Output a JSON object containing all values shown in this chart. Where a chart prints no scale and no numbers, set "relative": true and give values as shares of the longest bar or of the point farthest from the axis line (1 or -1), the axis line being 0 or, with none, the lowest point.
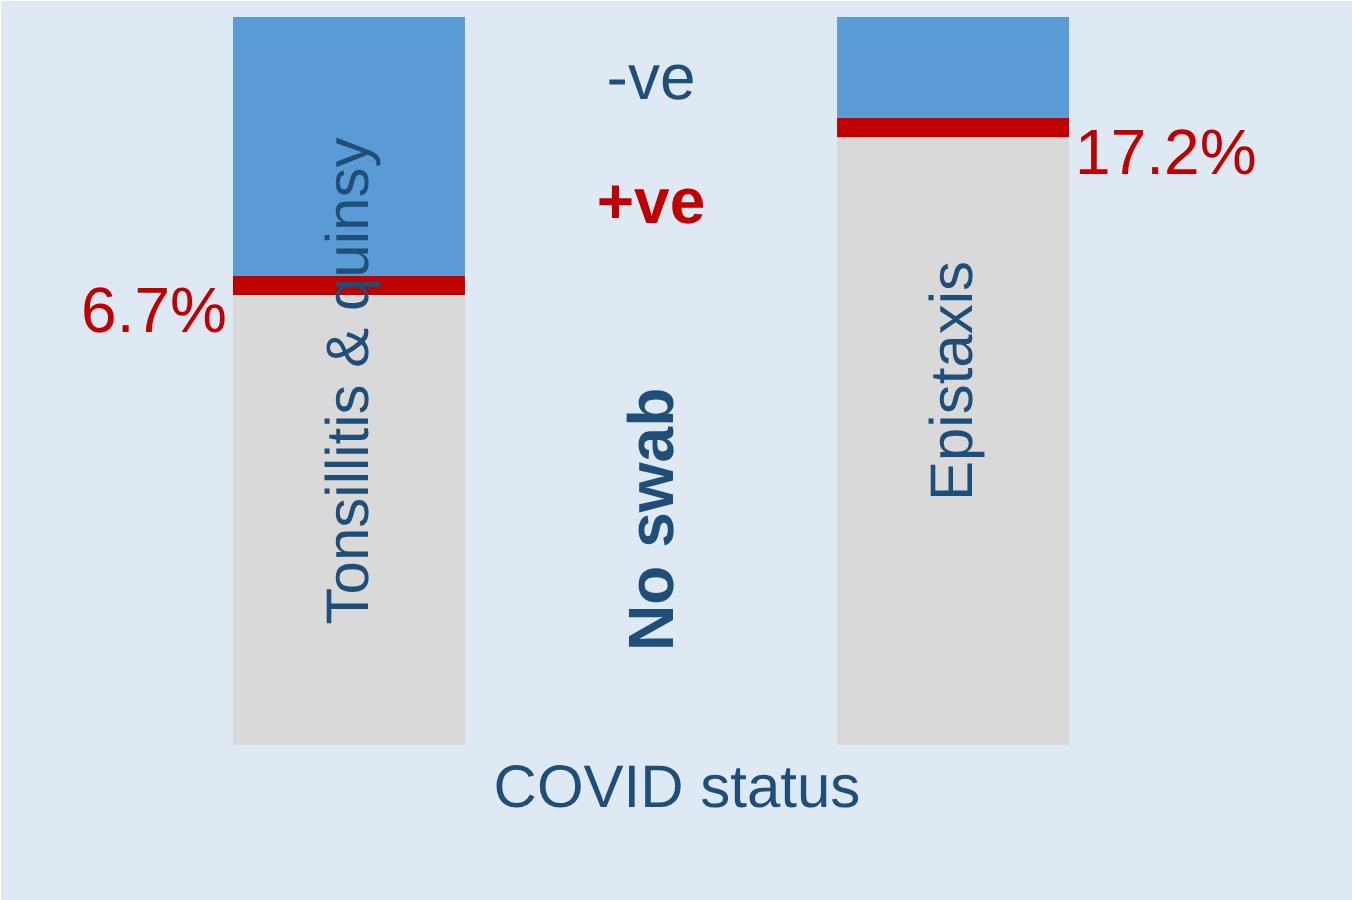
{
  "chart_data": {
    "type": "bar",
    "stacked": true,
    "relative": true,
    "xlabel": "COVID status",
    "categories": [
      "Tonsillitis & quinsy",
      "Epistaxis"
    ],
    "series": [
      {
        "name": "No swab",
        "color": "#d9d9d9",
        "values": [
          0.618,
          0.835
        ]
      },
      {
        "name": "+ve",
        "color": "#c00000",
        "values": [
          0.027,
          0.027
        ]
      },
      {
        "name": "-ve",
        "color": "#5b9bd5",
        "values": [
          0.355,
          0.138
        ]
      }
    ],
    "annotations": [
      "6.7%",
      "17.2%"
    ]
  }
}
